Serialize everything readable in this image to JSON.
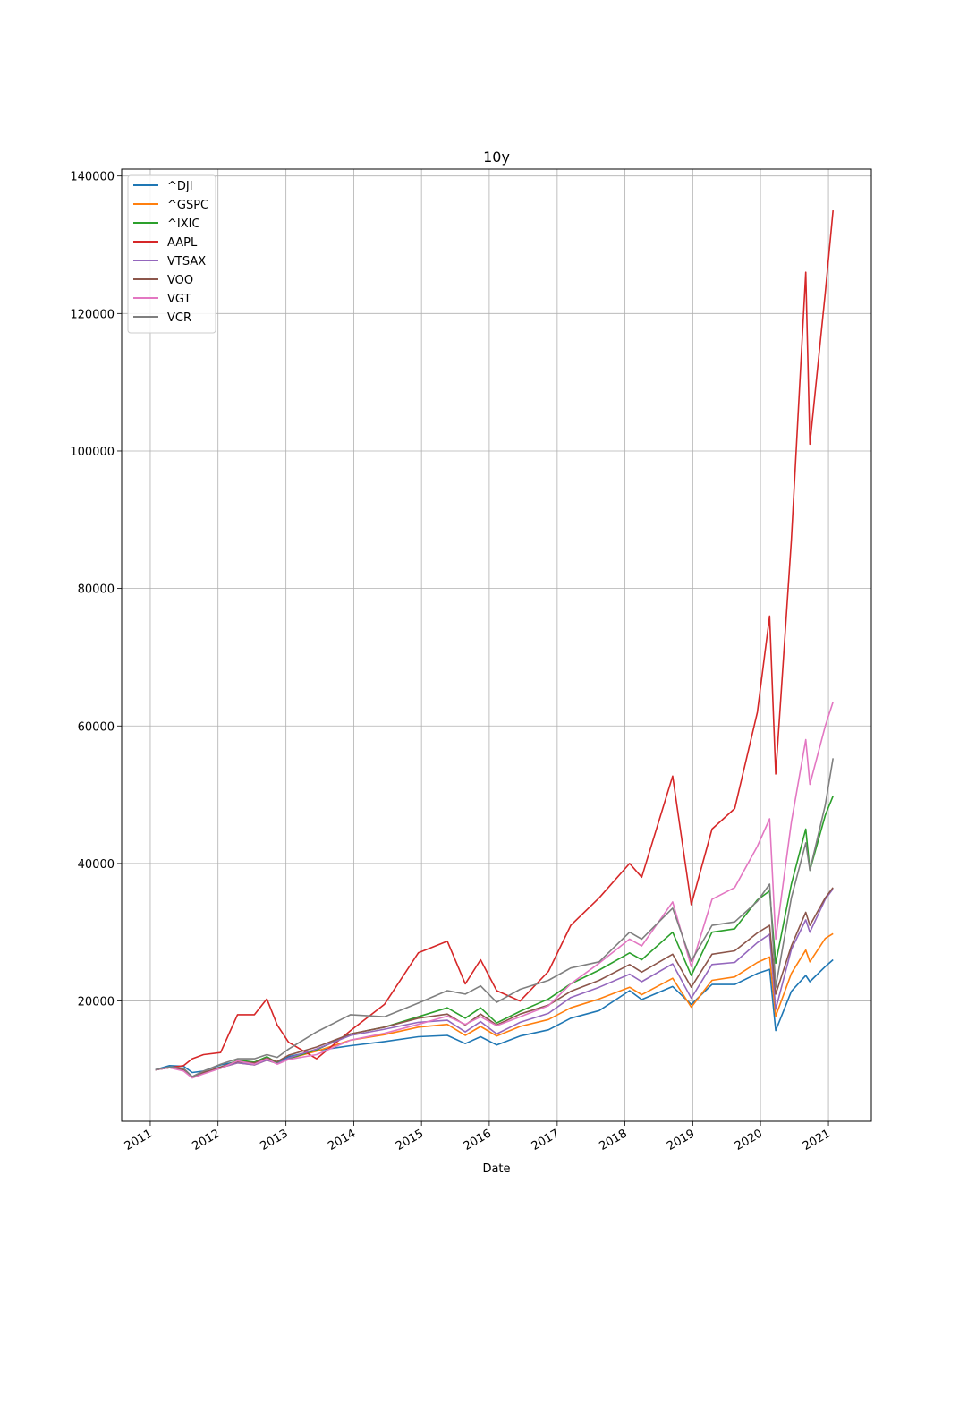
{
  "chart_data": {
    "type": "line",
    "title": "10y",
    "xlabel": "Date",
    "ylabel": "",
    "grid": true,
    "legend_position": "top-left",
    "xlim": [
      "2010-07-31",
      "2021-08-20"
    ],
    "ylim": [
      2500,
      141000
    ],
    "x_ticks": [
      "2011",
      "2012",
      "2013",
      "2014",
      "2015",
      "2016",
      "2017",
      "2018",
      "2019",
      "2020",
      "2021"
    ],
    "y_ticks": [
      "20000",
      "40000",
      "60000",
      "80000",
      "100000",
      "120000",
      "140000"
    ],
    "x": [
      "2011-01-28",
      "2011-04-15",
      "2011-06-30",
      "2011-08-15",
      "2011-10-15",
      "2012-01-15",
      "2012-04-15",
      "2012-07-15",
      "2012-09-20",
      "2012-11-15",
      "2013-01-15",
      "2013-06-15",
      "2013-12-15",
      "2014-06-15",
      "2014-12-15",
      "2015-05-20",
      "2015-08-25",
      "2015-11-15",
      "2016-02-10",
      "2016-06-15",
      "2016-11-15",
      "2017-03-15",
      "2017-08-15",
      "2018-01-26",
      "2018-04-01",
      "2018-09-15",
      "2018-12-24",
      "2019-04-15",
      "2019-08-15",
      "2019-12-15",
      "2020-02-19",
      "2020-03-23",
      "2020-06-15",
      "2020-09-01",
      "2020-09-23",
      "2020-12-15",
      "2021-01-26"
    ],
    "series": [
      {
        "name": "^DJI",
        "color": "#1f77b4",
        "values": [
          10000,
          10600,
          10500,
          9600,
          9800,
          10700,
          11200,
          11000,
          11500,
          11000,
          11900,
          12800,
          13500,
          14100,
          14800,
          15000,
          13800,
          14800,
          13600,
          14900,
          15800,
          17500,
          18600,
          21500,
          20200,
          22100,
          19500,
          22400,
          22400,
          24000,
          24600,
          15700,
          21400,
          23700,
          22800,
          25000,
          26000
        ]
      },
      {
        "name": "^GSPC",
        "color": "#ff7f0e",
        "values": [
          10000,
          10300,
          10000,
          8900,
          9600,
          10300,
          11000,
          10700,
          11400,
          10900,
          11600,
          12700,
          14300,
          15100,
          16200,
          16600,
          15000,
          16300,
          14900,
          16300,
          17300,
          19000,
          20300,
          22000,
          20900,
          23300,
          19100,
          23000,
          23500,
          25600,
          26400,
          17800,
          24000,
          27400,
          25700,
          29100,
          29800
        ]
      },
      {
        "name": "^IXIC",
        "color": "#2ca02c",
        "values": [
          10000,
          10300,
          10000,
          9000,
          9600,
          10200,
          11400,
          11100,
          11900,
          11000,
          11600,
          12900,
          15200,
          16200,
          17700,
          19000,
          17500,
          19000,
          16800,
          18500,
          20300,
          22500,
          24500,
          27000,
          26000,
          30000,
          23700,
          30000,
          30500,
          34700,
          36000,
          25500,
          37000,
          45000,
          39000,
          47000,
          49800
        ]
      },
      {
        "name": "AAPL",
        "color": "#d62728",
        "values": [
          10000,
          10300,
          10600,
          11600,
          12200,
          12500,
          18000,
          18000,
          20300,
          16500,
          14000,
          11600,
          15700,
          19500,
          27000,
          28700,
          22500,
          26000,
          21500,
          20000,
          24300,
          31000,
          35000,
          40000,
          38000,
          52700,
          34000,
          45000,
          48000,
          62000,
          76000,
          53000,
          87000,
          126000,
          101000,
          123000,
          135000
        ]
      },
      {
        "name": "VTSAX",
        "color": "#9467bd",
        "values": [
          10000,
          10300,
          10000,
          8900,
          9500,
          10300,
          11000,
          10700,
          11400,
          10900,
          11700,
          13000,
          15000,
          15900,
          16900,
          17200,
          15500,
          17000,
          15200,
          16900,
          18200,
          20500,
          22000,
          23900,
          22800,
          25400,
          20400,
          25300,
          25600,
          28500,
          29700,
          18800,
          27500,
          31800,
          30000,
          34800,
          36300
        ]
      },
      {
        "name": "VOO",
        "color": "#8c564b",
        "values": [
          10000,
          10300,
          10000,
          8900,
          9600,
          10400,
          11200,
          11000,
          11700,
          11200,
          12100,
          13300,
          15200,
          16200,
          17500,
          18100,
          16500,
          18100,
          16500,
          18100,
          19400,
          21400,
          23000,
          25300,
          24200,
          26800,
          22000,
          26800,
          27300,
          29900,
          31000,
          21000,
          28000,
          32900,
          31000,
          35000,
          36500
        ]
      },
      {
        "name": "VGT",
        "color": "#e377c2",
        "values": [
          10000,
          10300,
          9800,
          8800,
          9400,
          10200,
          11300,
          10800,
          11600,
          10800,
          11500,
          12200,
          14300,
          15300,
          16600,
          17800,
          16600,
          17700,
          16400,
          17700,
          19300,
          22500,
          25500,
          29000,
          28000,
          34400,
          25000,
          34800,
          36500,
          42500,
          46500,
          29000,
          46000,
          58000,
          51500,
          60000,
          63500
        ]
      },
      {
        "name": "VCR",
        "color": "#7f7f7f",
        "values": [
          10000,
          10400,
          10200,
          9000,
          9800,
          10800,
          11600,
          11600,
          12200,
          11800,
          13000,
          15500,
          18000,
          17700,
          19700,
          21500,
          21000,
          22200,
          19800,
          21700,
          23000,
          24800,
          25700,
          30000,
          29000,
          33500,
          25800,
          31000,
          31500,
          34500,
          37000,
          22000,
          35000,
          43000,
          39000,
          48500,
          55300
        ]
      }
    ]
  }
}
